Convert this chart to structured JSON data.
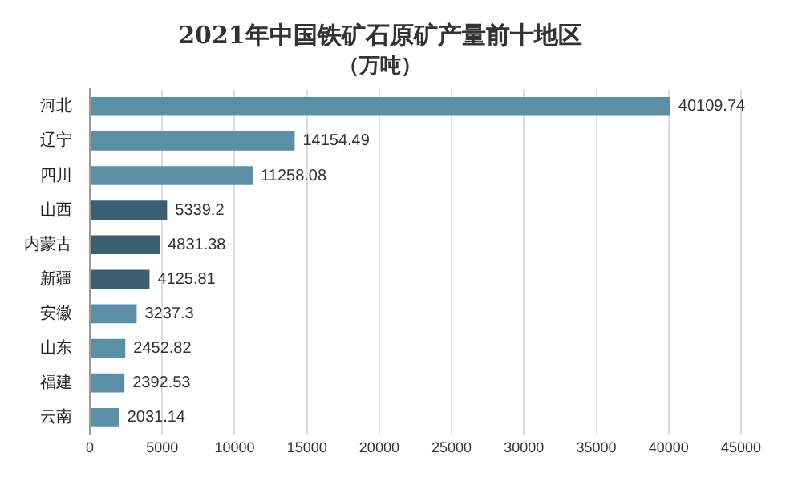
{
  "chart_data": {
    "type": "bar",
    "orientation": "horizontal",
    "title": "2021年中国铁矿石原矿产量前十地区",
    "subtitle": "（万吨）",
    "categories": [
      "河北",
      "辽宁",
      "四川",
      "山西",
      "内蒙古",
      "新疆",
      "安徽",
      "山东",
      "福建",
      "云南"
    ],
    "values": [
      40109.74,
      14154.49,
      11258.08,
      5339.2,
      4831.38,
      4125.81,
      3237.3,
      2452.82,
      2392.53,
      2031.14
    ],
    "colors": [
      "#5b8fa8",
      "#5b8fa8",
      "#5b8fa8",
      "#3b5f72",
      "#3b5f72",
      "#3b5f72",
      "#5b8fa8",
      "#5b8fa8",
      "#5b8fa8",
      "#5b8fa8"
    ],
    "data_labels": true,
    "xlim": [
      0,
      45000
    ],
    "xticks": [
      0,
      5000,
      10000,
      15000,
      20000,
      25000,
      30000,
      35000,
      40000,
      45000
    ],
    "grid": "x",
    "legend": false
  }
}
